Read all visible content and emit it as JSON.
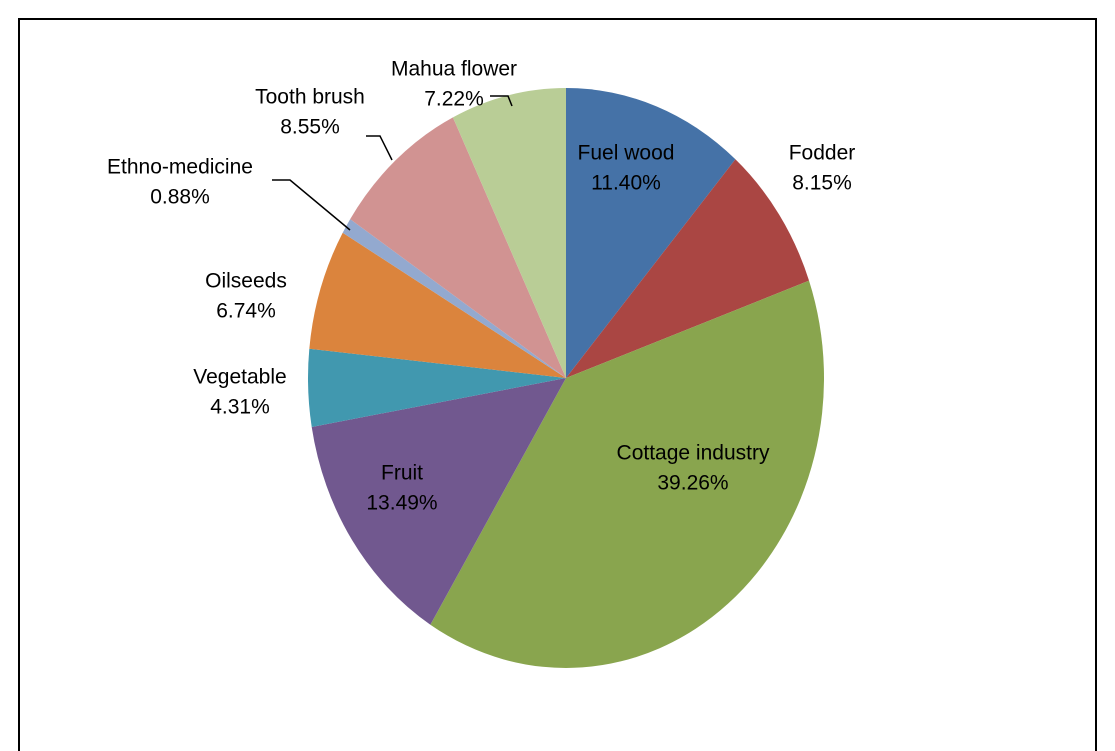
{
  "chart_data": {
    "type": "pie",
    "categories": [
      "Fuel wood",
      "Fodder",
      "Cottage industry",
      "Fruit",
      "Vegetable",
      "Oilseeds",
      "Ethno-medicine",
      "Tooth brush",
      "Mahua flower"
    ],
    "values": [
      11.4,
      8.15,
      39.26,
      13.49,
      4.31,
      6.74,
      0.88,
      8.55,
      7.22
    ],
    "value_labels": [
      "11.40%",
      "8.15%",
      "39.26%",
      "13.49%",
      "4.31%",
      "6.74%",
      "0.88%",
      "8.55%",
      "7.22%"
    ],
    "colors": [
      "#4572a7",
      "#aa4643",
      "#89a54e",
      "#71588f",
      "#4198af",
      "#db843d",
      "#93a9cf",
      "#d19392",
      "#b9cd96"
    ]
  }
}
